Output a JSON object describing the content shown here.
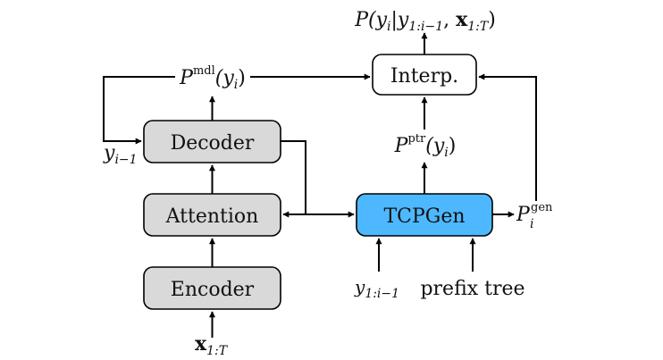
{
  "boxes": {
    "encoder": "Encoder",
    "attention": "Attention",
    "decoder": "Decoder",
    "tcpgen": "TCPGen",
    "interp": "Interp."
  },
  "labels": {
    "output_P": "P(",
    "output_y": "y",
    "output_i": "i",
    "output_bar": "|",
    "output_y2": "y",
    "output_sub": "1:i−1",
    "output_comma": ", ",
    "output_x": "x",
    "output_xsub": "1:T",
    "output_close": ")",
    "pmdl_P": "P",
    "pmdl_sup": "mdl",
    "pmdl_arg": "(y",
    "pmdl_i": "i",
    "pmdl_close": ")",
    "pptr_P": "P",
    "pptr_sup": "ptr",
    "pptr_arg": "(y",
    "pptr_i": "i",
    "pptr_close": ")",
    "pgen_P": "P",
    "pgen_sup": "gen",
    "pgen_i": "i",
    "yprev_y": "y",
    "yprev_sub": "i−1",
    "input_x": "x",
    "input_sub": "1:T",
    "y1_y": "y",
    "y1_sub": "1:i−1",
    "prefix_tree": "prefix tree"
  },
  "colors": {
    "gray_box": "#d9d9d9",
    "tcpgen_box": "#4db8ff",
    "white_box": "#ffffff",
    "stroke": "#000000"
  }
}
